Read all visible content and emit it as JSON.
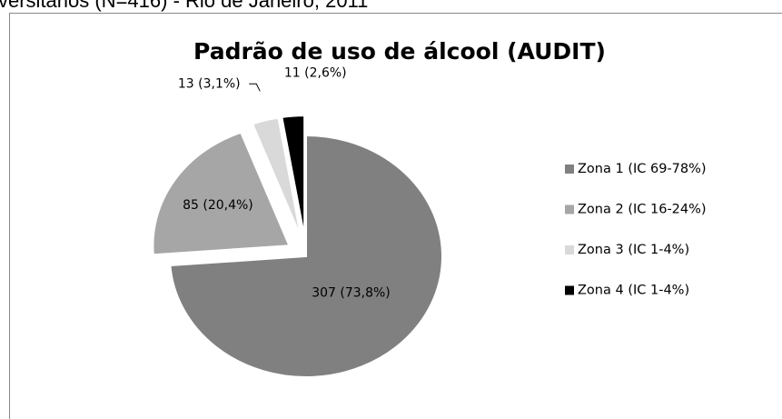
{
  "chart_data": {
    "type": "pie",
    "subtitle": "versitários (N=416) - Rio de Janeiro, 2011",
    "title": "Padrão de uso de álcool (AUDIT)",
    "categories": [
      "Zona 1 (IC 69-78%)",
      "Zona 2 (IC 16-24%)",
      "Zona 3 (IC 1-4%)",
      "Zona 4 (IC 1-4%)"
    ],
    "values": [
      307,
      85,
      13,
      11
    ],
    "value_labels": [
      "307 (73,8%)",
      "85 (20,4%)",
      "13 (3,1%)",
      "11 (2,6%)"
    ],
    "colors": [
      "#808080",
      "#a6a6a6",
      "#d9d9d9",
      "#000000"
    ],
    "legend": "right"
  }
}
